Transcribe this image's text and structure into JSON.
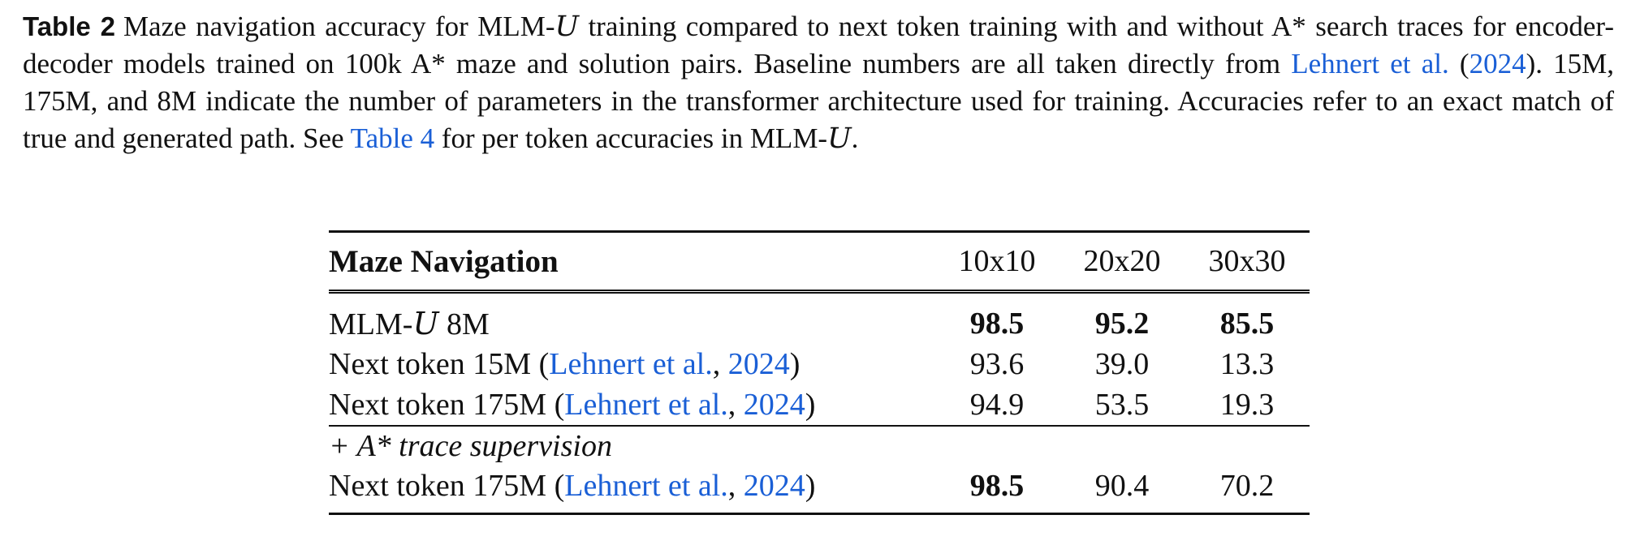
{
  "caption": {
    "label": "Table 2",
    "text_1": "Maze navigation accuracy for MLM-",
    "calligraphic_u": "U",
    "text_2": " training compared to next token training with and without A* search traces for encoder-decoder models trained on 100k A* maze and solution pairs. Baseline numbers are all taken directly from ",
    "cite_author": "Lehnert et al.",
    "cite_open": " (",
    "cite_year": "2024",
    "text_3": "). 15M, 175M, and 8M indicate the number of parameters in the transformer architecture used for training. Accuracies refer to an exact match of true and generated path. See ",
    "table_ref": "Table 4",
    "text_4": " for per token accuracies in MLM-",
    "text_end": "."
  },
  "table": {
    "title": "Maze Navigation",
    "columns": [
      "10x10",
      "20x20",
      "30x30"
    ],
    "rows": [
      {
        "model_prefix": "MLM-",
        "model_cal": "U",
        "model_suffix": " 8M",
        "values": [
          "98.5",
          "95.2",
          "85.5"
        ],
        "bold": [
          true,
          true,
          true
        ]
      },
      {
        "model_prefix": "Next token 15M (",
        "cite_author": "Lehnert et al.",
        "cite_sep": ", ",
        "cite_year": "2024",
        "cite_close": ")",
        "values": [
          "93.6",
          "39.0",
          "13.3"
        ],
        "bold": [
          false,
          false,
          false
        ]
      },
      {
        "model_prefix": "Next token 175M (",
        "cite_author": "Lehnert et al.",
        "cite_sep": ", ",
        "cite_year": "2024",
        "cite_close": ")",
        "values": [
          "94.9",
          "53.5",
          "19.3"
        ],
        "bold": [
          false,
          false,
          false
        ]
      }
    ],
    "section_label": "+ A* trace supervision",
    "section_rows": [
      {
        "model_prefix": "Next token 175M (",
        "cite_author": "Lehnert et al.",
        "cite_sep": ", ",
        "cite_year": "2024",
        "cite_close": ")",
        "values": [
          "98.5",
          "90.4",
          "70.2"
        ],
        "bold": [
          true,
          false,
          false
        ]
      }
    ]
  },
  "colors": {
    "link": "#1a5fd6",
    "text": "#111111"
  }
}
